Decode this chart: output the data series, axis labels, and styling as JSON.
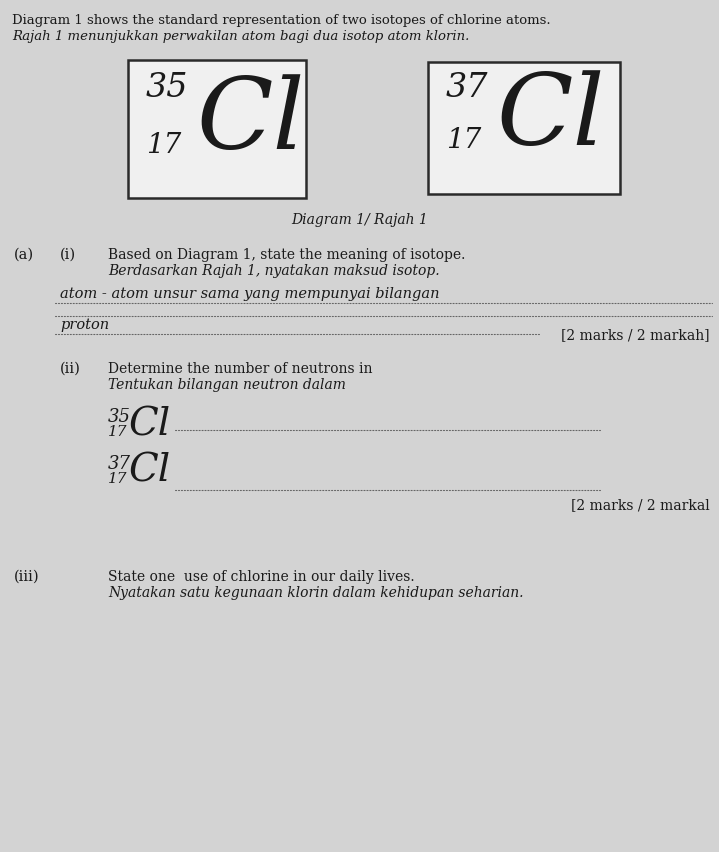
{
  "bg_color": "#d3d3d3",
  "title_line1": "Diagram 1 shows the standard representation of two isotopes of chlorine atoms.",
  "title_line2": "Rajah 1 menunjukkan perwakilan atom bagi dua isotop atom klorin.",
  "box1_mass": "35",
  "box1_atomic": "17",
  "box1_symbol": "Cl",
  "box2_mass": "37",
  "box2_atomic": "17",
  "box2_symbol": "Cl",
  "diagram_label": "Diagram 1/ Rajah 1",
  "part_a": "(a)",
  "part_i": "(i)",
  "q_i_en": "Based on Diagram 1, state the meaning of isotope.",
  "q_i_ms": "Berdasarkan Rajah 1, nyatakan maksud isotop.",
  "answer_line1": "atom - atom unsur sama yang mempunyai bilangan",
  "answer_line2": "proton",
  "marks_i": "[2 marks / 2 markah]",
  "part_ii": "(ii)",
  "q_ii_en": "Determine the number of neutrons in",
  "q_ii_ms": "Tentukan bilangan neutron dalam",
  "cl35_label_mass": "35",
  "cl35_label_atomic": "17",
  "cl35_label_symbol": "Cl",
  "cl37_label_mass": "37",
  "cl37_label_atomic": "17",
  "cl37_label_symbol": "Cl",
  "marks_ii": "[2 marks / 2 markal",
  "part_iii": "(iii)",
  "q_iii_en": "State one  use of chlorine in our daily lives.",
  "q_iii_ms": "Nyatakan satu kegunaan klorin dalam kehidupan seharian."
}
